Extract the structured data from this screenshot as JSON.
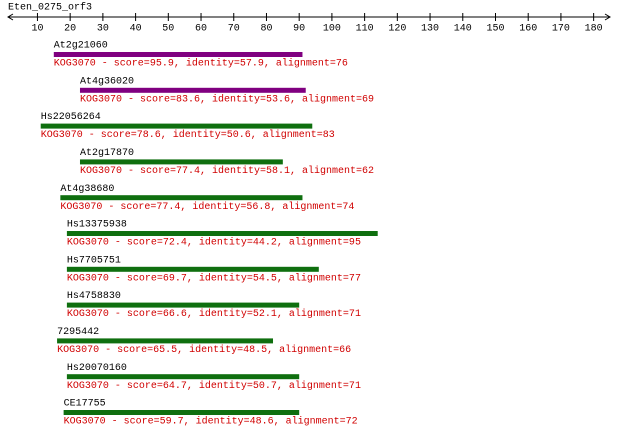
{
  "chart_data": {
    "type": "alignment",
    "title": "Eten_0275_orf3",
    "xlim": [
      1,
      185
    ],
    "xticks": [
      10,
      20,
      30,
      40,
      50,
      60,
      70,
      80,
      90,
      100,
      110,
      120,
      130,
      140,
      150,
      160,
      170,
      180
    ],
    "hits": [
      {
        "name": "At2g21060",
        "start": 15,
        "end": 91,
        "color": "#800080",
        "label": "KOG3070 - score=95.9, identity=57.9, alignment=76"
      },
      {
        "name": "At4g36020",
        "start": 23,
        "end": 92,
        "color": "#800080",
        "label": "KOG3070 - score=83.6, identity=53.6, alignment=69"
      },
      {
        "name": "Hs22056264",
        "start": 11,
        "end": 94,
        "color": "#0f6f0f",
        "label": "KOG3070 - score=78.6, identity=50.6, alignment=83"
      },
      {
        "name": "At2g17870",
        "start": 23,
        "end": 85,
        "color": "#0f6f0f",
        "label": "KOG3070 - score=77.4, identity=58.1, alignment=62"
      },
      {
        "name": "At4g38680",
        "start": 17,
        "end": 91,
        "color": "#0f6f0f",
        "label": "KOG3070 - score=77.4, identity=56.8, alignment=74"
      },
      {
        "name": "Hs13375938",
        "start": 19,
        "end": 114,
        "color": "#0f6f0f",
        "label": "KOG3070 - score=72.4, identity=44.2, alignment=95"
      },
      {
        "name": "Hs7705751",
        "start": 19,
        "end": 96,
        "color": "#0f6f0f",
        "label": "KOG3070 - score=69.7, identity=54.5, alignment=77"
      },
      {
        "name": "Hs4758830",
        "start": 19,
        "end": 90,
        "color": "#0f6f0f",
        "label": "KOG3070 - score=66.6, identity=52.1, alignment=71"
      },
      {
        "name": "7295442",
        "start": 16,
        "end": 82,
        "color": "#0f6f0f",
        "label": "KOG3070 - score=65.5, identity=48.5, alignment=66"
      },
      {
        "name": "Hs20070160",
        "start": 19,
        "end": 90,
        "color": "#0f6f0f",
        "label": "KOG3070 - score=64.7, identity=50.7, alignment=71"
      },
      {
        "name": "CE17755",
        "start": 18,
        "end": 90,
        "color": "#0f6f0f",
        "label": "KOG3070 - score=59.7, identity=48.6, alignment=72"
      }
    ]
  }
}
